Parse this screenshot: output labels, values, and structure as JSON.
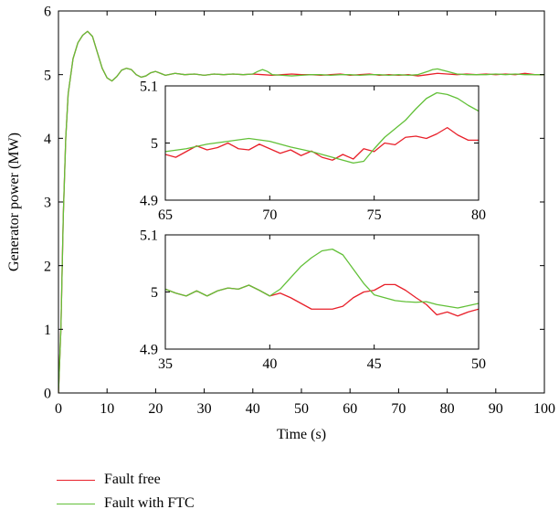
{
  "chart_data": [
    {
      "type": "line",
      "title": "",
      "xlabel": "Time (s)",
      "ylabel": "Generator power (MW)",
      "xlim": [
        0,
        100
      ],
      "ylim": [
        0,
        6
      ],
      "xticks": [
        "0",
        "10",
        "20",
        "30",
        "40",
        "50",
        "60",
        "70",
        "80",
        "90",
        "100"
      ],
      "yticks": [
        "0",
        "1",
        "2",
        "3",
        "4",
        "5",
        "6"
      ],
      "legend_position": "below",
      "series": [
        {
          "name": "Fault free",
          "color": "#e8202a",
          "x": [
            0,
            0.5,
            1,
            1.5,
            2,
            3,
            4,
            5,
            6,
            7,
            8,
            9,
            10,
            11,
            12,
            13,
            14,
            15,
            16,
            17,
            18,
            19,
            20,
            21,
            22,
            24,
            26,
            28,
            30,
            32,
            34,
            36,
            38,
            40,
            42,
            44,
            46,
            48,
            50,
            52,
            54,
            56,
            58,
            60,
            62,
            64,
            66,
            68,
            70,
            72,
            74,
            76,
            78,
            80,
            82,
            84,
            86,
            88,
            90,
            92,
            94,
            96,
            98,
            100
          ],
          "y": [
            0,
            1.0,
            2.8,
            4.0,
            4.7,
            5.25,
            5.5,
            5.62,
            5.68,
            5.6,
            5.35,
            5.1,
            4.95,
            4.9,
            4.97,
            5.07,
            5.1,
            5.08,
            5.0,
            4.96,
            4.98,
            5.03,
            5.05,
            5.02,
            4.99,
            5.02,
            5.0,
            5.01,
            4.99,
            5.01,
            5.0,
            5.01,
            5.0,
            5.01,
            5.0,
            4.99,
            5.0,
            5.01,
            5.0,
            5.0,
            4.99,
            5.0,
            5.01,
            4.99,
            5.0,
            5.01,
            4.99,
            5.0,
            4.99,
            5.0,
            4.98,
            5.0,
            5.02,
            5.01,
            5.0,
            5.01,
            5.0,
            5.01,
            5.0,
            5.01,
            5.0,
            5.02,
            5.0,
            5.0
          ]
        },
        {
          "name": "Fault with FTC",
          "color": "#62c038",
          "x": [
            0,
            0.5,
            1,
            1.5,
            2,
            3,
            4,
            5,
            6,
            7,
            8,
            9,
            10,
            11,
            12,
            13,
            14,
            15,
            16,
            17,
            18,
            19,
            20,
            21,
            22,
            24,
            26,
            28,
            30,
            32,
            34,
            36,
            38,
            40,
            41,
            42,
            43,
            44,
            46,
            48,
            50,
            52,
            54,
            56,
            58,
            60,
            62,
            64,
            66,
            68,
            70,
            72,
            74,
            76,
            77,
            78,
            79,
            80,
            82,
            84,
            86,
            88,
            90,
            92,
            94,
            96,
            98,
            100
          ],
          "y": [
            0,
            1.0,
            2.8,
            4.0,
            4.7,
            5.25,
            5.5,
            5.62,
            5.68,
            5.6,
            5.35,
            5.1,
            4.95,
            4.9,
            4.97,
            5.07,
            5.1,
            5.08,
            5.0,
            4.96,
            4.98,
            5.03,
            5.05,
            5.02,
            4.99,
            5.02,
            5.0,
            5.01,
            4.99,
            5.01,
            5.0,
            5.01,
            5.0,
            5.01,
            5.05,
            5.08,
            5.05,
            5.0,
            4.99,
            4.98,
            4.99,
            5.0,
            5.0,
            4.99,
            5.0,
            5.0,
            4.99,
            5.0,
            5.0,
            4.99,
            5.0,
            4.99,
            5.0,
            5.05,
            5.08,
            5.09,
            5.07,
            5.05,
            5.01,
            5.0,
            5.0,
            5.0,
            5.01,
            5.0,
            5.01,
            5.0,
            5.0,
            5.0
          ]
        }
      ]
    },
    {
      "type": "line",
      "title": "",
      "xlabel": "",
      "ylabel": "",
      "xlim": [
        65,
        80
      ],
      "ylim": [
        4.9,
        5.1
      ],
      "xticks": [
        "65",
        "70",
        "75",
        "80"
      ],
      "yticks": [
        "4.9",
        "5",
        "5.1"
      ],
      "series": [
        {
          "name": "Fault free",
          "color": "#e8202a",
          "x": [
            65,
            65.5,
            66,
            66.5,
            67,
            67.5,
            68,
            68.5,
            69,
            69.5,
            70,
            70.5,
            71,
            71.5,
            72,
            72.5,
            73,
            73.5,
            74,
            74.5,
            75,
            75.5,
            76,
            76.5,
            77,
            77.5,
            78,
            78.5,
            79,
            79.5,
            80
          ],
          "y": [
            4.98,
            4.975,
            4.985,
            4.995,
            4.988,
            4.992,
            5.0,
            4.99,
            4.988,
            4.998,
            4.99,
            4.982,
            4.988,
            4.978,
            4.986,
            4.975,
            4.97,
            4.98,
            4.972,
            4.99,
            4.985,
            5.0,
            4.997,
            5.01,
            5.012,
            5.008,
            5.016,
            5.027,
            5.014,
            5.005,
            5.005
          ]
        },
        {
          "name": "Fault with FTC",
          "color": "#62c038",
          "x": [
            65,
            66,
            67,
            68,
            69,
            70,
            71,
            72,
            73,
            73.5,
            74,
            74.5,
            75,
            75.5,
            76,
            76.5,
            77,
            77.5,
            78,
            78.5,
            79,
            79.5,
            80
          ],
          "y": [
            4.985,
            4.99,
            4.998,
            5.003,
            5.008,
            5.003,
            4.993,
            4.985,
            4.975,
            4.97,
            4.965,
            4.968,
            4.99,
            5.01,
            5.025,
            5.04,
            5.06,
            5.078,
            5.088,
            5.085,
            5.078,
            5.066,
            5.056
          ]
        }
      ]
    },
    {
      "type": "line",
      "title": "",
      "xlabel": "",
      "ylabel": "",
      "xlim": [
        35,
        50
      ],
      "ylim": [
        4.9,
        5.1
      ],
      "xticks": [
        "35",
        "40",
        "45",
        "50"
      ],
      "yticks": [
        "4.9",
        "5",
        "5.1"
      ],
      "series": [
        {
          "name": "Fault free",
          "color": "#e8202a",
          "x": [
            35,
            35.5,
            36,
            36.5,
            37,
            37.5,
            38,
            38.5,
            39,
            39.5,
            40,
            40.5,
            41,
            41.5,
            42,
            42.5,
            43,
            43.5,
            44,
            44.5,
            45,
            45.5,
            46,
            46.5,
            47,
            47.5,
            48,
            48.5,
            49,
            49.5,
            50
          ],
          "y": [
            5.005,
            4.998,
            4.993,
            5.002,
            4.993,
            5.002,
            5.007,
            5.005,
            5.012,
            5.003,
            4.993,
            4.998,
            4.99,
            4.98,
            4.97,
            4.97,
            4.97,
            4.975,
            4.99,
            5.0,
            5.003,
            5.013,
            5.013,
            5.003,
            4.99,
            4.978,
            4.96,
            4.965,
            4.958,
            4.965,
            4.97
          ]
        },
        {
          "name": "Fault with FTC",
          "color": "#62c038",
          "x": [
            35,
            35.5,
            36,
            36.5,
            37,
            37.5,
            38,
            38.5,
            39,
            39.5,
            40,
            40.5,
            41,
            41.5,
            42,
            42.5,
            43,
            43.5,
            44,
            44.5,
            45,
            45.5,
            46,
            46.5,
            47,
            47.5,
            48,
            48.5,
            49,
            49.5,
            50
          ],
          "y": [
            5.005,
            4.998,
            4.993,
            5.002,
            4.993,
            5.002,
            5.007,
            5.005,
            5.012,
            5.003,
            4.993,
            5.005,
            5.025,
            5.045,
            5.06,
            5.072,
            5.075,
            5.065,
            5.04,
            5.015,
            4.995,
            4.99,
            4.985,
            4.983,
            4.982,
            4.983,
            4.978,
            4.975,
            4.972,
            4.976,
            4.98
          ]
        }
      ]
    }
  ]
}
